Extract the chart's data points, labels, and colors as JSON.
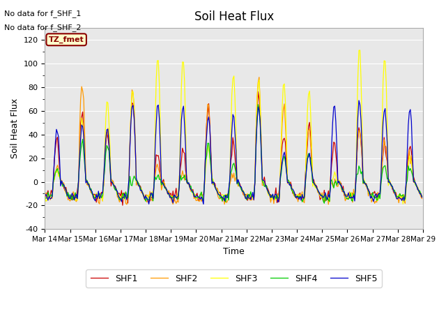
{
  "title": "Soil Heat Flux",
  "ylabel": "Soil Heat Flux",
  "xlabel": "Time",
  "ylim": [
    -40,
    130
  ],
  "yticks": [
    -40,
    -20,
    0,
    20,
    40,
    60,
    80,
    100,
    120
  ],
  "no_data_text1": "No data for f_SHF_1",
  "no_data_text2": "No data for f_SHF_2",
  "tz_label": "TZ_fmet",
  "bg_color": "#e8e8e8",
  "series_colors": {
    "SHF1": "#cc0000",
    "SHF2": "#ff9900",
    "SHF3": "#ffff00",
    "SHF4": "#00cc00",
    "SHF5": "#0000cc"
  },
  "xtick_labels": [
    "Mar 14",
    "Mar 15",
    "Mar 16",
    "Mar 17",
    "Mar 18",
    "Mar 19",
    "Mar 20",
    "Mar 21",
    "Mar 22",
    "Mar 23",
    "Mar 24",
    "Mar 25",
    "Mar 26",
    "Mar 27",
    "Mar 28",
    "Mar 29"
  ],
  "xtick_positions": [
    0,
    24,
    48,
    72,
    96,
    120,
    144,
    168,
    192,
    216,
    240,
    264,
    288,
    312,
    336,
    360
  ]
}
